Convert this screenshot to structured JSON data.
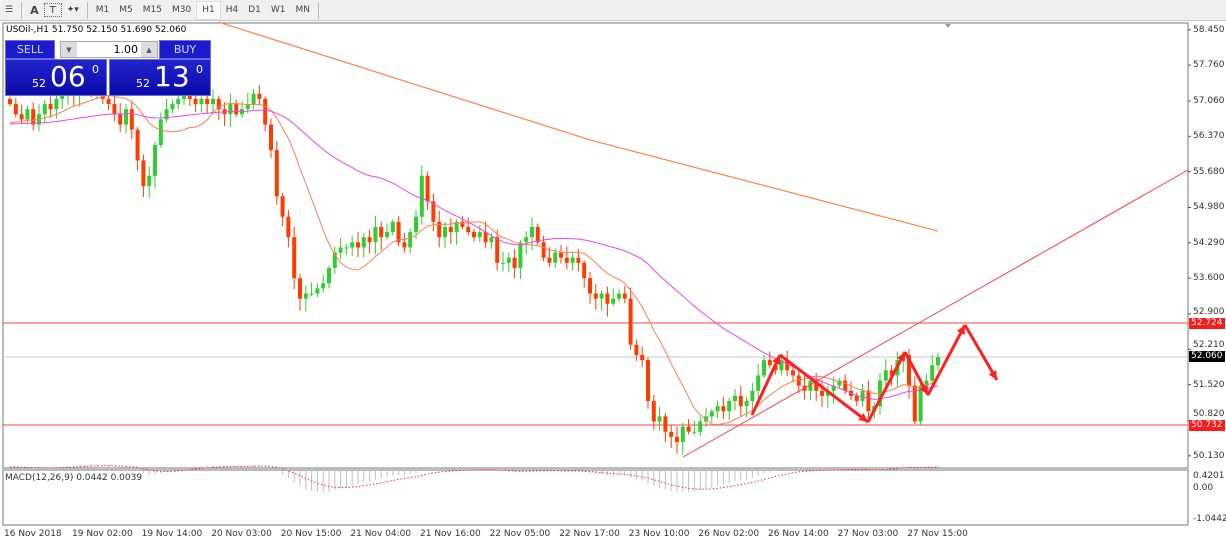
{
  "toolbar": {
    "icons": [
      "horizontal-lines-icon",
      "text-icon",
      "text-label-icon",
      "shapes-dropdown-icon"
    ],
    "text_icon": "A",
    "label_icon": "T",
    "timeframes": [
      "M1",
      "M5",
      "M15",
      "M30",
      "H1",
      "H4",
      "D1",
      "W1",
      "MN"
    ],
    "active_timeframe": "H1"
  },
  "chart": {
    "symbol_header": "USOil-,H1  51.750 52.150 51.690 52.060",
    "trade_panel": {
      "sell_label": "SELL",
      "buy_label": "BUY",
      "lot": "1.00",
      "sell_big": "52",
      "sell_main": "06",
      "sell_sup": "0",
      "buy_big": "52",
      "buy_main": "13",
      "buy_sup": "0"
    },
    "price_axis": [
      "58.450",
      "57.760",
      "57.060",
      "56.370",
      "55.680",
      "54.980",
      "54.290",
      "53.600",
      "52.900",
      "52.210",
      "51.520",
      "50.820",
      "50.130"
    ],
    "tags": {
      "resistance": "52.724",
      "current": "52.060",
      "support": "50.732"
    },
    "time_axis": [
      "16 Nov 2018",
      "19 Nov 02:00",
      "19 Nov 14:00",
      "20 Nov 03:00",
      "20 Nov 15:00",
      "21 Nov 04:00",
      "21 Nov 16:00",
      "22 Nov 05:00",
      "22 Nov 17:00",
      "23 Nov 10:00",
      "26 Nov 02:00",
      "26 Nov 14:00",
      "27 Nov 03:00",
      "27 Nov 15:00"
    ],
    "macd": {
      "label": "MACD(12,26,9) 0.0442 0.0039",
      "axis": [
        "0.4201",
        "0.00",
        "-1.0442"
      ]
    },
    "colors": {
      "bull": "#32cd32",
      "bear": "#ff3c00",
      "ma_fast": "#ff7f50",
      "ma_mid": "#ee44ee",
      "ma_slow": "#ff7f50",
      "levels": "#ff4040",
      "arrows": "#ff2020",
      "current": "#c8c8c8"
    }
  },
  "chart_data": {
    "type": "candlestick",
    "levels": [
      52.724,
      50.732
    ],
    "current_price": 52.06,
    "closes": [
      57.0,
      56.8,
      56.7,
      56.9,
      56.6,
      56.8,
      57.0,
      56.9,
      57.1,
      57.2,
      57.3,
      57.2,
      57.4,
      57.3,
      57.2,
      57.3,
      57.1,
      57.0,
      56.8,
      56.6,
      56.9,
      56.5,
      55.9,
      55.4,
      55.6,
      56.2,
      56.7,
      56.9,
      57.0,
      57.1,
      57.2,
      57.1,
      57.0,
      57.1,
      57.0,
      57.1,
      56.9,
      56.8,
      57.0,
      56.8,
      56.9,
      57.0,
      57.2,
      57.1,
      56.6,
      56.1,
      55.2,
      54.8,
      54.4,
      53.6,
      53.2,
      53.3,
      53.3,
      53.4,
      53.5,
      53.8,
      54.1,
      54.2,
      54.2,
      54.3,
      54.2,
      54.4,
      54.3,
      54.6,
      54.4,
      54.5,
      54.7,
      54.3,
      54.2,
      54.5,
      54.8,
      55.6,
      55.1,
      54.7,
      54.4,
      54.6,
      54.5,
      54.7,
      54.6,
      54.5,
      54.4,
      54.5,
      54.3,
      54.4,
      53.9,
      53.9,
      54.0,
      53.8,
      54.3,
      54.4,
      54.6,
      54.3,
      54.0,
      53.9,
      54.1,
      54.0,
      53.9,
      54.0,
      53.9,
      53.6,
      53.3,
      53.2,
      53.3,
      53.1,
      53.2,
      53.3,
      53.2,
      52.3,
      52.1,
      52.0,
      51.2,
      50.8,
      50.9,
      50.6,
      50.5,
      50.4,
      50.7,
      50.6,
      50.6,
      50.8,
      50.9,
      51.0,
      51.1,
      51.0,
      51.2,
      51.3,
      51.1,
      51.2,
      51.4,
      51.7,
      52.0,
      51.9,
      51.8,
      52.0,
      51.8,
      51.7,
      51.5,
      51.4,
      51.6,
      51.4,
      51.3,
      51.4,
      51.5,
      51.6,
      51.4,
      51.3,
      51.2,
      51.4,
      51.0,
      51.1,
      51.6,
      51.8,
      51.7,
      52.0,
      52.1,
      51.5,
      50.8,
      51.5,
      51.6,
      51.9,
      52.06
    ],
    "ma_slow": [
      [
        36,
        58.6
      ],
      [
        100,
        56.3
      ],
      [
        160,
        54.52
      ]
    ],
    "ylim": [
      50.13,
      58.45
    ]
  }
}
